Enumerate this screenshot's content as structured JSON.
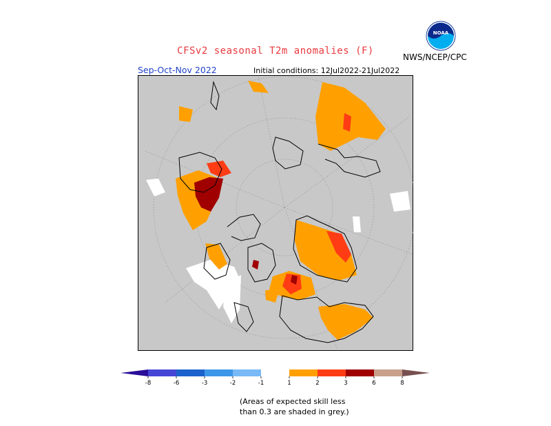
{
  "header": {
    "title": "CFSv2 seasonal T2m anomalies (F)",
    "agency": "NWS/NCEP/CPC",
    "season": "Sep-Oct-Nov 2022",
    "initial_conditions": "Initial conditions: 12Jul2022-21Jul2022"
  },
  "logo": {
    "icon": "noaa-logo-icon",
    "text": "NOAA"
  },
  "map": {
    "projection": "polar stereographic (north pole)",
    "background_color": "#c8c8c8",
    "grid_color": "#999999"
  },
  "legend": {
    "colors": {
      "lt_-8": "#2a0e99",
      "-8_-6": "#4646d6",
      "-6_-3": "#1b62cc",
      "-3_-2": "#3c96e8",
      "-2_-1": "#78b9f6",
      "-1_1": "#ffffff",
      "1_2": "#ffa000",
      "2_3": "#ff3c14",
      "3_6": "#a00000",
      "6_8": "#c8a08c",
      "gt_8": "#785050"
    },
    "ticks": [
      "-8",
      "-6",
      "-3",
      "-2",
      "-1",
      "1",
      "2",
      "3",
      "6",
      "8"
    ]
  },
  "note": {
    "line1": "(Areas of expected skill less",
    "line2": "than 0.3 are shaded in grey.)"
  }
}
